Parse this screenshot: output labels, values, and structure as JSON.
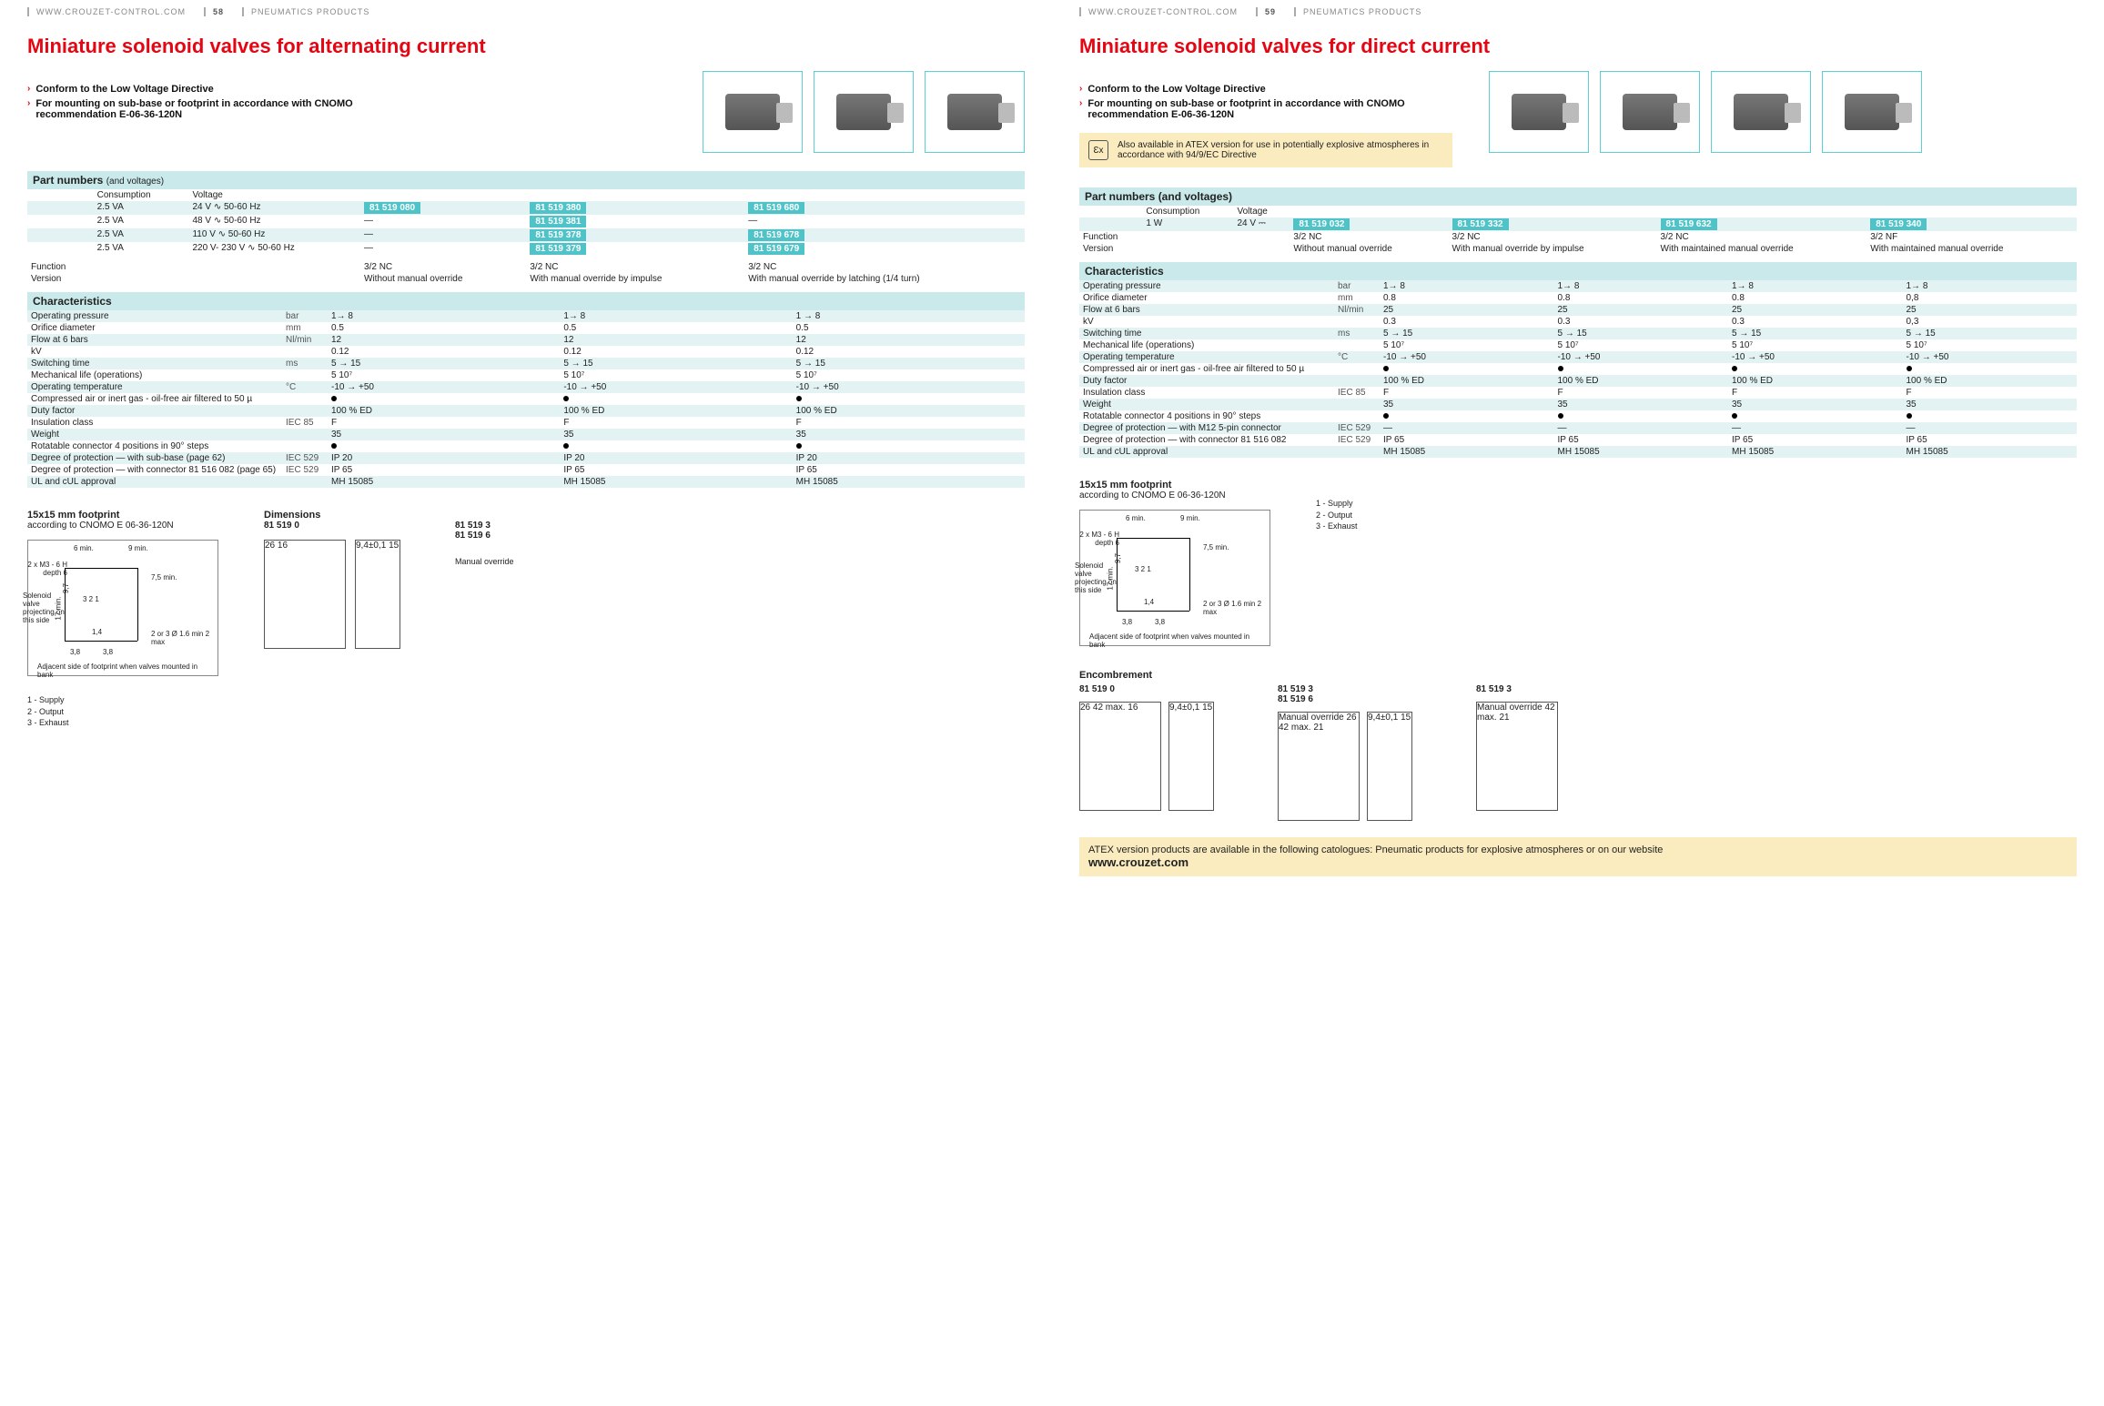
{
  "header": {
    "url": "WWW.CROUZET-CONTROL.COM",
    "category": "PNEUMATICS PRODUCTS",
    "page_left": "58",
    "page_right": "59"
  },
  "left": {
    "title": "Miniature solenoid valves for alternating current",
    "bullets": [
      "Conform to the Low Voltage Directive",
      "For mounting on sub-base or footprint in accordance with CNOMO recommendation E-06-36-120N"
    ],
    "part_header": "Part numbers",
    "part_header_sub": "(and voltages)",
    "cons_label": "Consumption",
    "volt_label": "Voltage",
    "rows_voltage": [
      {
        "c": "2.5 VA",
        "v": "24 V ∿ 50-60 Hz",
        "p": [
          "81 519 080",
          "81 519 380",
          "81 519 680"
        ]
      },
      {
        "c": "2.5 VA",
        "v": "48 V ∿ 50-60 Hz",
        "p": [
          "—",
          "81 519 381",
          "—"
        ]
      },
      {
        "c": "2.5 VA",
        "v": "110 V ∿ 50-60 Hz",
        "p": [
          "—",
          "81 519 378",
          "81 519 678"
        ]
      },
      {
        "c": "2.5 VA",
        "v": "220 V- 230 V ∿ 50-60 Hz",
        "p": [
          "—",
          "81 519 379",
          "81 519 679"
        ]
      }
    ],
    "func_label": "Function",
    "ver_label": "Version",
    "versions": [
      {
        "f": "3/2 NC",
        "v": "Without manual override"
      },
      {
        "f": "3/2 NC",
        "v": "With manual override by impulse"
      },
      {
        "f": "3/2 NC",
        "v": "With manual override by latching (1/4 turn)"
      }
    ],
    "char_header": "Characteristics",
    "char_rows": [
      {
        "l": "Operating pressure",
        "u": "bar",
        "v": [
          "1→ 8",
          "1→ 8",
          "1 → 8"
        ]
      },
      {
        "l": "Orifice diameter",
        "u": "mm",
        "v": [
          "0.5",
          "0.5",
          "0.5"
        ]
      },
      {
        "l": "Flow at 6 bars",
        "u": "Nl/min",
        "v": [
          "12",
          "12",
          "12"
        ]
      },
      {
        "l": "kV",
        "u": "",
        "v": [
          "0.12",
          "0.12",
          "0.12"
        ]
      },
      {
        "l": "Switching time",
        "u": "ms",
        "v": [
          "5 → 15",
          "5 → 15",
          "5 → 15"
        ]
      },
      {
        "l": "Mechanical life (operations)",
        "u": "",
        "v": [
          "5 10⁷",
          "5 10⁷",
          "5 10⁷"
        ]
      },
      {
        "l": "Operating temperature",
        "u": "°C",
        "v": [
          "-10 → +50",
          "-10 → +50",
          "-10 → +50"
        ]
      },
      {
        "l": "Compressed air or inert gas - oil-free air filtered to 50 µ",
        "u": "",
        "v": [
          "●",
          "●",
          "●"
        ]
      },
      {
        "l": "Duty factor",
        "u": "",
        "v": [
          "100 % ED",
          "100 % ED",
          "100 % ED"
        ]
      },
      {
        "l": "Insulation class",
        "u": "IEC 85",
        "v": [
          "F",
          "F",
          "F"
        ]
      },
      {
        "l": "Weight",
        "u": "",
        "v": [
          "35",
          "35",
          "35"
        ]
      },
      {
        "l": "Rotatable connector 4 positions in 90° steps",
        "u": "",
        "v": [
          "●",
          "●",
          "●"
        ]
      },
      {
        "l": "Degree of protection — with sub-base (page 62)",
        "u": "IEC 529",
        "v": [
          "IP 20",
          "IP 20",
          "IP 20"
        ]
      },
      {
        "l": "Degree of protection — with connector 81 516 082 (page 65)",
        "u": "IEC 529",
        "v": [
          "IP 65",
          "IP 65",
          "IP 65"
        ]
      },
      {
        "l": "UL and cUL approval",
        "u": "",
        "v": [
          "MH 15085",
          "MH 15085",
          "MH 15085"
        ]
      }
    ],
    "footprint_title": "15x15 mm footprint",
    "footprint_sub": "according to CNOMO E 06-36-120N",
    "diag_labels": {
      "a": "6 min.",
      "b": "9 min.",
      "c": "2 x M3 - 6 H depth 6",
      "d": "7,5 min.",
      "e": "Solenoid valve projecting on this side",
      "f": "1,4",
      "g": "3,8",
      "h": "17 min.",
      "i": "9,7",
      "j": "2 or 3 Ø 1.6 min 2 max",
      "k": "Adjacent side of footprint when valves mounted in bank",
      "ports": "3  2  1"
    },
    "port_legend": [
      "1 - Supply",
      "2 - Output",
      "3 - Exhaust"
    ],
    "dim_title": "Dimensions",
    "dim_groups": [
      "81 519 0",
      "81 519 3",
      "81 519 6"
    ],
    "dim_vals": {
      "w1": "26",
      "w2": "9,4±0,1",
      "h": "16",
      "h2": "15",
      "note": "Manual override"
    }
  },
  "right": {
    "title": "Miniature solenoid valves for direct current",
    "bullets": [
      "Conform to the Low Voltage Directive",
      "For mounting on sub-base or footprint in accordance with CNOMO recommendation E-06-36-120N"
    ],
    "atex": "Also available in ATEX version for use in potentially explosive atmospheres in accordance with 94/9/EC Directive",
    "part_header": "Part numbers (and voltages)",
    "cons_label": "Consumption",
    "cons_val": "1 W",
    "volt_label": "Voltage",
    "volt_val": "24 V ⎓",
    "pn": [
      "81 519 032",
      "81 519 332",
      "81 519 632",
      "81 519 340"
    ],
    "func_label": "Function",
    "ver_label": "Version",
    "versions": [
      {
        "f": "3/2 NC",
        "v": "Without manual override"
      },
      {
        "f": "3/2 NC",
        "v": "With manual override by impulse"
      },
      {
        "f": "3/2 NC",
        "v": "With maintained manual override"
      },
      {
        "f": "3/2 NF",
        "v": "With maintained manual override"
      }
    ],
    "char_header": "Characteristics",
    "char_rows": [
      {
        "l": "Operating pressure",
        "u": "bar",
        "v": [
          "1→ 8",
          "1→ 8",
          "1→ 8",
          "1→ 8"
        ]
      },
      {
        "l": "Orifice diameter",
        "u": "mm",
        "v": [
          "0.8",
          "0.8",
          "0.8",
          "0,8"
        ]
      },
      {
        "l": "Flow at 6 bars",
        "u": "Nl/min",
        "v": [
          "25",
          "25",
          "25",
          "25"
        ]
      },
      {
        "l": "kV",
        "u": "",
        "v": [
          "0.3",
          "0.3",
          "0.3",
          "0,3"
        ]
      },
      {
        "l": "Switching time",
        "u": "ms",
        "v": [
          "5 → 15",
          "5 → 15",
          "5 → 15",
          "5 → 15"
        ]
      },
      {
        "l": "Mechanical life (operations)",
        "u": "",
        "v": [
          "5 10⁷",
          "5 10⁷",
          "5 10⁷",
          "5 10⁷"
        ]
      },
      {
        "l": "Operating temperature",
        "u": "°C",
        "v": [
          "-10 → +50",
          "-10 → +50",
          "-10 → +50",
          "-10 → +50"
        ]
      },
      {
        "l": "Compressed air or inert gas - oil-free air filtered to 50 µ",
        "u": "",
        "v": [
          "●",
          "●",
          "●",
          "●"
        ]
      },
      {
        "l": "Duty factor",
        "u": "",
        "v": [
          "100 % ED",
          "100 % ED",
          "100 % ED",
          "100 % ED"
        ]
      },
      {
        "l": "Insulation class",
        "u": "IEC 85",
        "v": [
          "F",
          "F",
          "F",
          "F"
        ]
      },
      {
        "l": "Weight",
        "u": "",
        "v": [
          "35",
          "35",
          "35",
          "35"
        ]
      },
      {
        "l": "Rotatable connector 4 positions in 90° steps",
        "u": "",
        "v": [
          "●",
          "●",
          "●",
          "●"
        ]
      },
      {
        "l": "Degree of protection — with M12 5-pin connector",
        "u": "IEC 529",
        "v": [
          "—",
          "—",
          "—",
          "—"
        ]
      },
      {
        "l": "Degree of protection — with connector 81 516 082",
        "u": "IEC 529",
        "v": [
          "IP 65",
          "IP 65",
          "IP 65",
          "IP 65"
        ]
      },
      {
        "l": "UL and cUL approval",
        "u": "",
        "v": [
          "MH 15085",
          "MH 15085",
          "MH 15085",
          "MH 15085"
        ]
      }
    ],
    "footprint_title": "15x15 mm footprint",
    "footprint_sub": "according to CNOMO E 06-36-120N",
    "enc_title": "Encombrement",
    "enc_groups": [
      "81 519 0",
      "81 519 3",
      "81 519 6",
      "81 519 3"
    ],
    "enc_vals": {
      "w1": "26",
      "w2": "9,4±0,1",
      "h": "42 max.",
      "b1": "16",
      "b2": "15",
      "b3": "21",
      "note": "Manual override"
    }
  },
  "footer": {
    "text": "ATEX version products are available in the following catologues: Pneumatic products for explosive atmospheres or on our website",
    "site": "www.crouzet.com"
  },
  "colors": {
    "accent": "#e30613",
    "teal": "#5dd0d4",
    "stripe": "#e3f3f3",
    "yellow": "#fbecc0",
    "pill": "#4fc3c8"
  }
}
